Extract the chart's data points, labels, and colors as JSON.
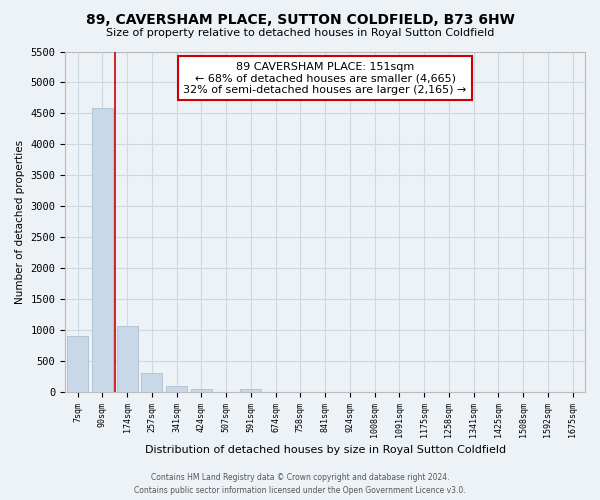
{
  "title": "89, CAVERSHAM PLACE, SUTTON COLDFIELD, B73 6HW",
  "subtitle": "Size of property relative to detached houses in Royal Sutton Coldfield",
  "xlabel": "Distribution of detached houses by size in Royal Sutton Coldfield",
  "ylabel": "Number of detached properties",
  "bar_labels": [
    "7sqm",
    "90sqm",
    "174sqm",
    "257sqm",
    "341sqm",
    "424sqm",
    "507sqm",
    "591sqm",
    "674sqm",
    "758sqm",
    "841sqm",
    "924sqm",
    "1008sqm",
    "1091sqm",
    "1175sqm",
    "1258sqm",
    "1341sqm",
    "1425sqm",
    "1508sqm",
    "1592sqm",
    "1675sqm"
  ],
  "bar_values": [
    900,
    4580,
    1070,
    300,
    90,
    55,
    0,
    40,
    0,
    0,
    0,
    0,
    0,
    0,
    0,
    0,
    0,
    0,
    0,
    0,
    0
  ],
  "bar_color": "#c8d8e8",
  "bar_edge_color": "#a0b8cc",
  "ylim": [
    0,
    5500
  ],
  "yticks": [
    0,
    500,
    1000,
    1500,
    2000,
    2500,
    3000,
    3500,
    4000,
    4500,
    5000,
    5500
  ],
  "vline_color": "#cc0000",
  "annotation_title": "89 CAVERSHAM PLACE: 151sqm",
  "annotation_line1": "← 68% of detached houses are smaller (4,665)",
  "annotation_line2": "32% of semi-detached houses are larger (2,165) →",
  "annotation_box_color": "#ffffff",
  "annotation_box_edge": "#cc0000",
  "footer_line1": "Contains HM Land Registry data © Crown copyright and database right 2024.",
  "footer_line2": "Contains public sector information licensed under the Open Government Licence v3.0.",
  "grid_color": "#ccd8e4",
  "background_color": "#edf2f7"
}
